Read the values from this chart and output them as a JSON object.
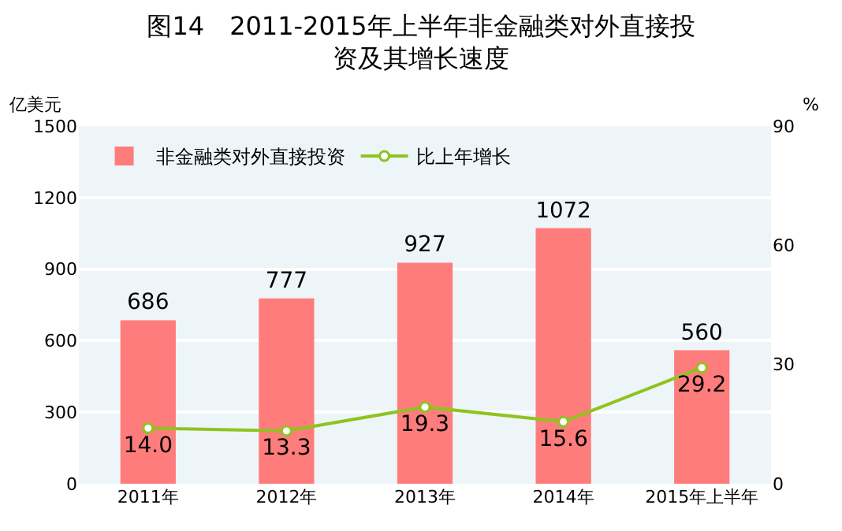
{
  "chart_data": {
    "type": "bar",
    "title": "图14　2011-2015年上半年非金融类对外直接投资及其增长速度",
    "ylabel": "亿美元",
    "y2label": "%",
    "categories": [
      "2011年",
      "2012年",
      "2013年",
      "2014年",
      "2015年上半年"
    ],
    "series": [
      {
        "name": "非金融类对外直接投资",
        "color": "#ff7c7c",
        "values": [
          686,
          777,
          927,
          1072,
          560
        ]
      },
      {
        "name": "比上年增长",
        "type": "line",
        "axis": "y2",
        "color": "#8fc31f",
        "marker": "circle",
        "values": [
          14.0,
          13.3,
          19.3,
          15.6,
          29.2
        ],
        "value_labels": [
          "14.0",
          "13.3",
          "19.3",
          "15.6",
          "29.2"
        ]
      }
    ],
    "ylim": [
      0,
      1500
    ],
    "yticks": [
      0,
      300,
      600,
      900,
      1200,
      1500
    ],
    "y2lim": [
      0,
      90
    ],
    "y2ticks": [
      0,
      30,
      60,
      90
    ],
    "grid": "y",
    "legend": "top left",
    "data_labels": true
  }
}
